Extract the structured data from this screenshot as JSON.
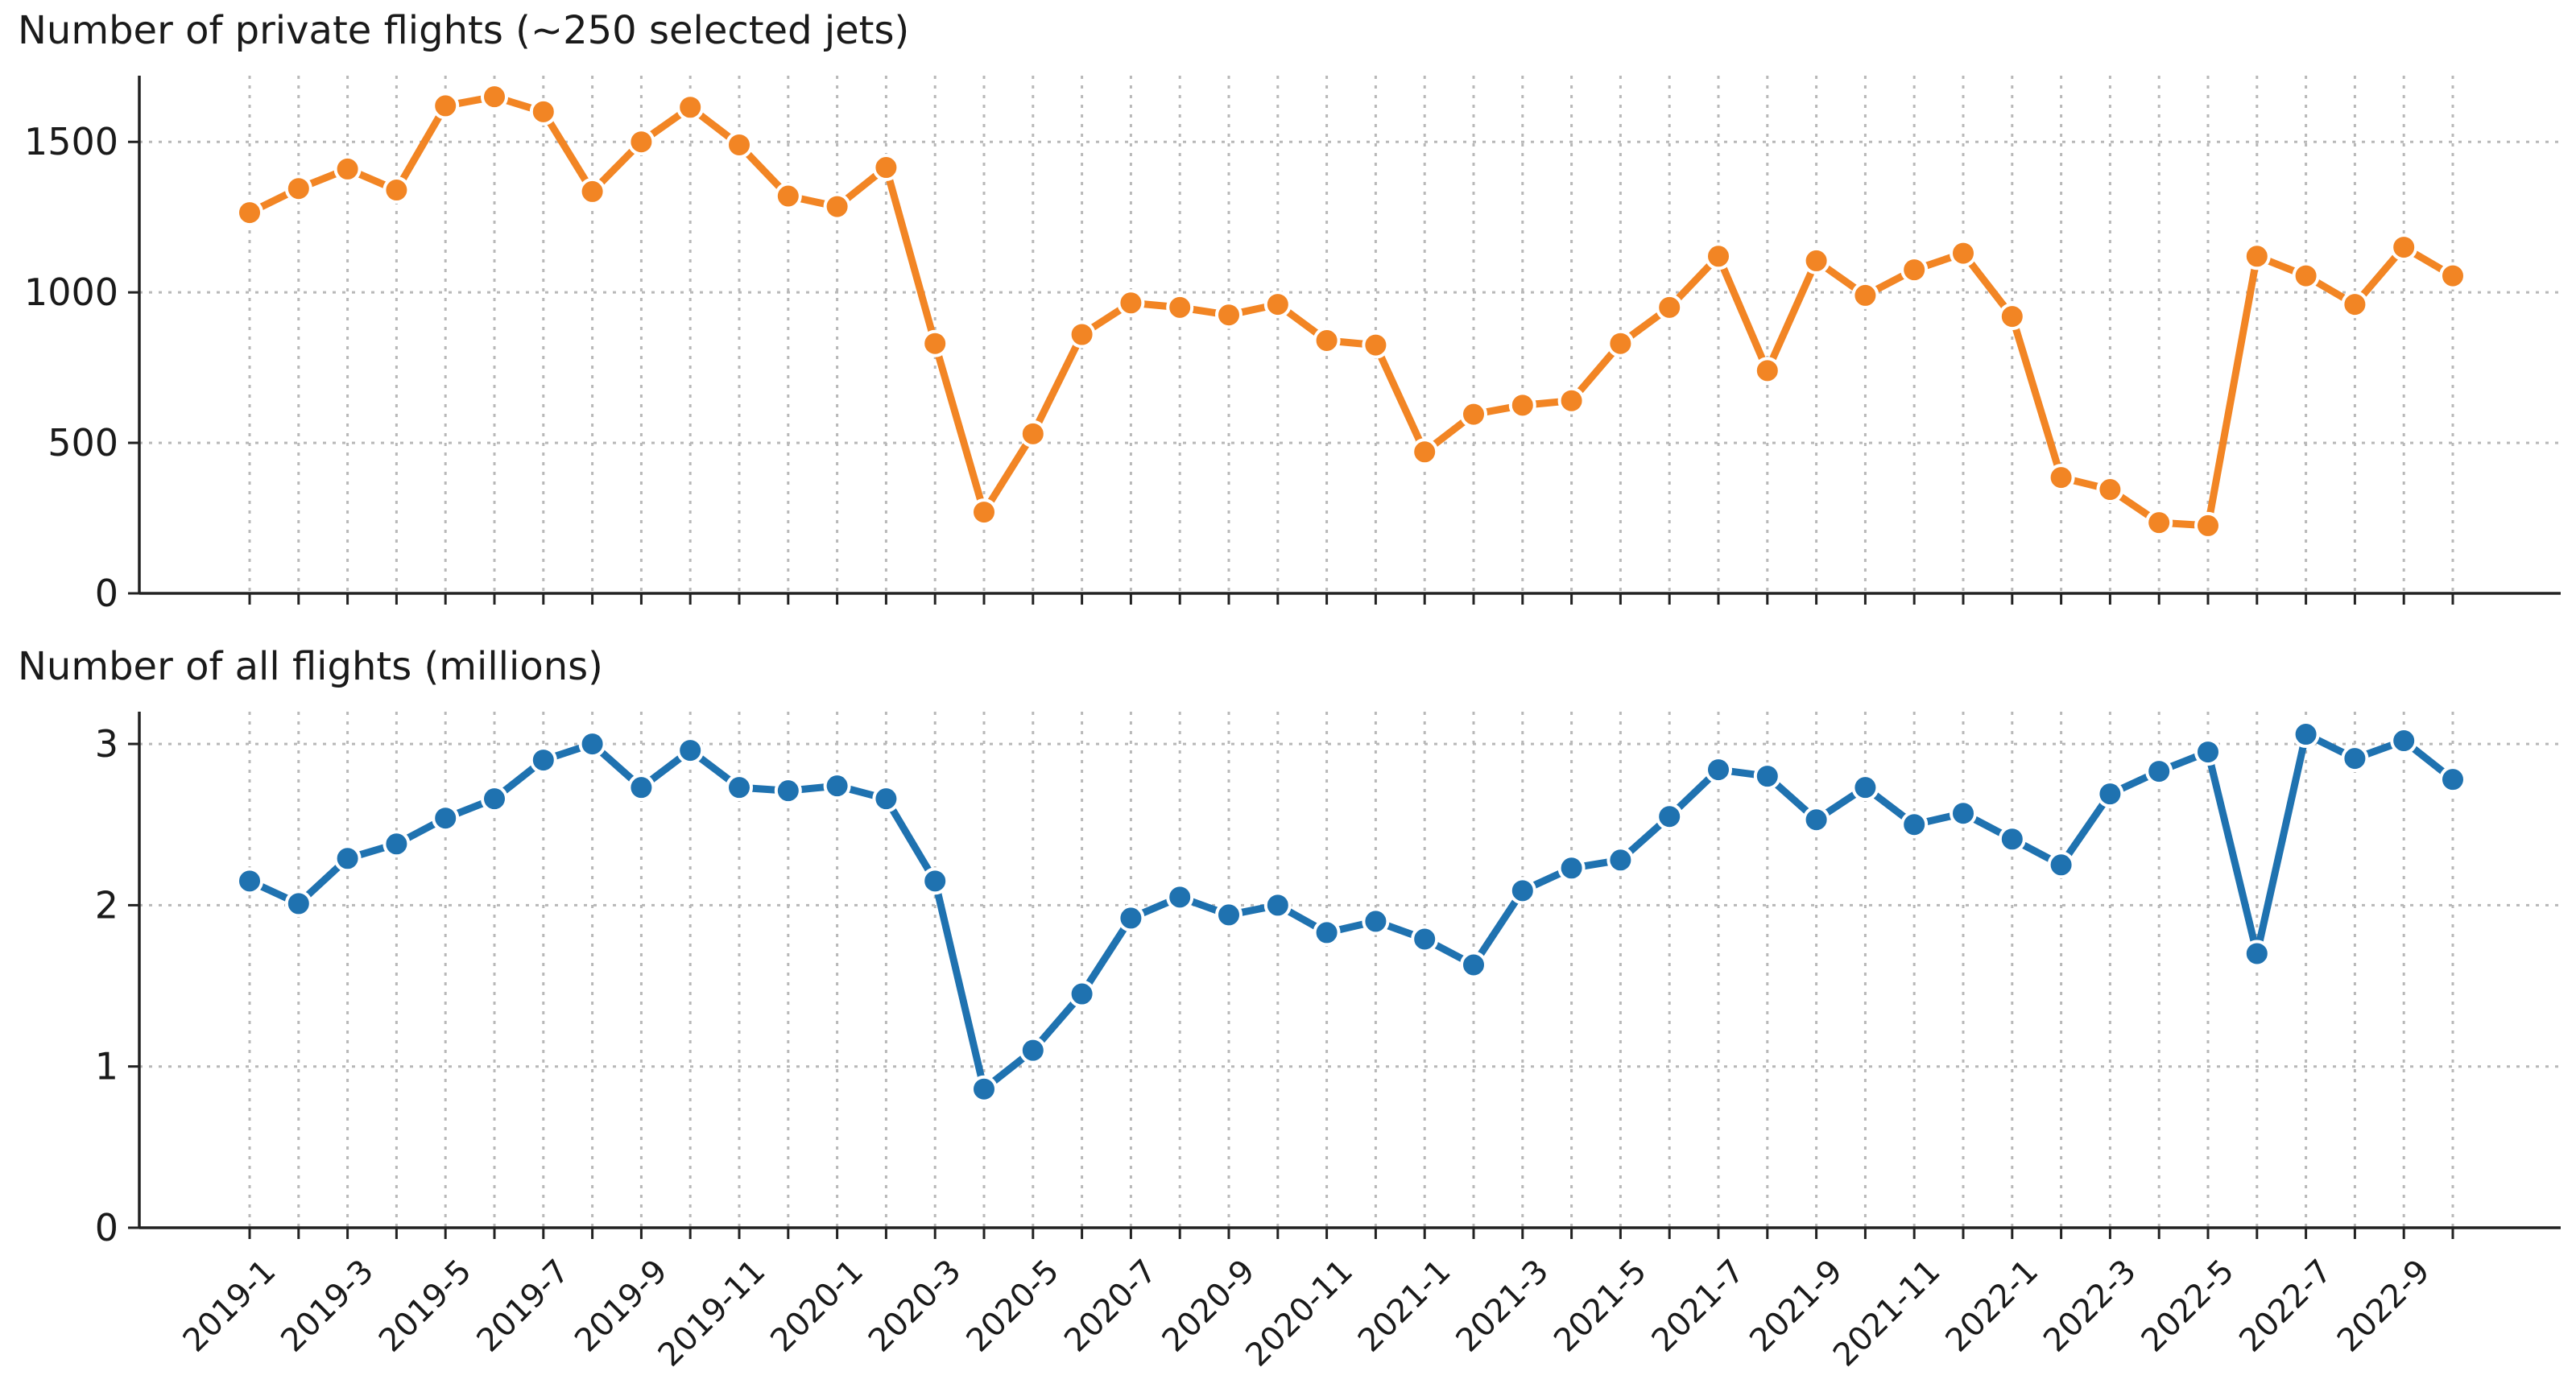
{
  "chart_data": [
    {
      "id": "private",
      "type": "line",
      "title": "Number of private flights (~250 selected jets)",
      "color": "#f28524",
      "ylim": [
        0,
        1720
      ],
      "yticks": [
        0,
        500,
        1000,
        1500
      ],
      "categories": [
        "2019-1",
        "2019-2",
        "2019-3",
        "2019-4",
        "2019-5",
        "2019-6",
        "2019-7",
        "2019-8",
        "2019-9",
        "2019-10",
        "2019-11",
        "2019-12",
        "2020-1",
        "2020-2",
        "2020-3",
        "2020-4",
        "2020-5",
        "2020-6",
        "2020-7",
        "2020-8",
        "2020-9",
        "2020-10",
        "2020-11",
        "2020-12",
        "2021-1",
        "2021-2",
        "2021-3",
        "2021-4",
        "2021-5",
        "2021-6",
        "2021-7",
        "2021-8",
        "2021-9",
        "2021-10",
        "2021-11",
        "2021-12",
        "2022-1",
        "2022-2",
        "2022-3",
        "2022-4",
        "2022-5",
        "2022-6",
        "2022-7",
        "2022-8",
        "2022-9",
        "2022-10"
      ],
      "values": [
        1265,
        1345,
        1410,
        1340,
        1620,
        1650,
        1600,
        1335,
        1500,
        1615,
        1490,
        1320,
        1285,
        1415,
        830,
        270,
        530,
        860,
        965,
        950,
        925,
        960,
        840,
        825,
        470,
        595,
        625,
        640,
        830,
        950,
        1120,
        740,
        1105,
        990,
        1075,
        1130,
        920,
        385,
        345,
        235,
        225,
        1120,
        1055,
        960,
        1150,
        1055
      ]
    },
    {
      "id": "all",
      "type": "line",
      "title": "Number of all flights (millions)",
      "color": "#1f72b0",
      "ylim": [
        0,
        3.2
      ],
      "yticks": [
        0,
        1,
        2,
        3
      ],
      "categories": [
        "2019-1",
        "2019-2",
        "2019-3",
        "2019-4",
        "2019-5",
        "2019-6",
        "2019-7",
        "2019-8",
        "2019-9",
        "2019-10",
        "2019-11",
        "2019-12",
        "2020-1",
        "2020-2",
        "2020-3",
        "2020-4",
        "2020-5",
        "2020-6",
        "2020-7",
        "2020-8",
        "2020-9",
        "2020-10",
        "2020-11",
        "2020-12",
        "2021-1",
        "2021-2",
        "2021-3",
        "2021-4",
        "2021-5",
        "2021-6",
        "2021-7",
        "2021-8",
        "2021-9",
        "2021-10",
        "2021-11",
        "2021-12",
        "2022-1",
        "2022-2",
        "2022-3",
        "2022-4",
        "2022-5",
        "2022-6",
        "2022-7",
        "2022-8",
        "2022-9",
        "2022-10"
      ],
      "values": [
        2.15,
        2.01,
        2.29,
        2.38,
        2.54,
        2.66,
        2.9,
        3.0,
        2.73,
        2.96,
        2.73,
        2.71,
        2.74,
        2.66,
        2.15,
        0.86,
        1.1,
        1.45,
        1.92,
        2.05,
        1.94,
        2.0,
        1.83,
        1.9,
        1.79,
        1.63,
        2.09,
        2.23,
        2.28,
        2.55,
        2.84,
        2.8,
        2.53,
        2.73,
        2.5,
        2.57,
        2.41,
        2.25,
        2.69,
        2.83,
        2.95,
        1.7,
        3.06,
        2.91,
        3.02,
        2.78
      ]
    }
  ],
  "x_tick_labels": [
    "2019-1",
    "2019-3",
    "2019-5",
    "2019-7",
    "2019-9",
    "2019-11",
    "2020-1",
    "2020-3",
    "2020-5",
    "2020-7",
    "2020-9",
    "2020-11",
    "2021-1",
    "2021-3",
    "2021-5",
    "2021-7",
    "2021-9",
    "2021-11",
    "2022-1",
    "2022-3",
    "2022-5",
    "2022-7",
    "2022-9"
  ]
}
